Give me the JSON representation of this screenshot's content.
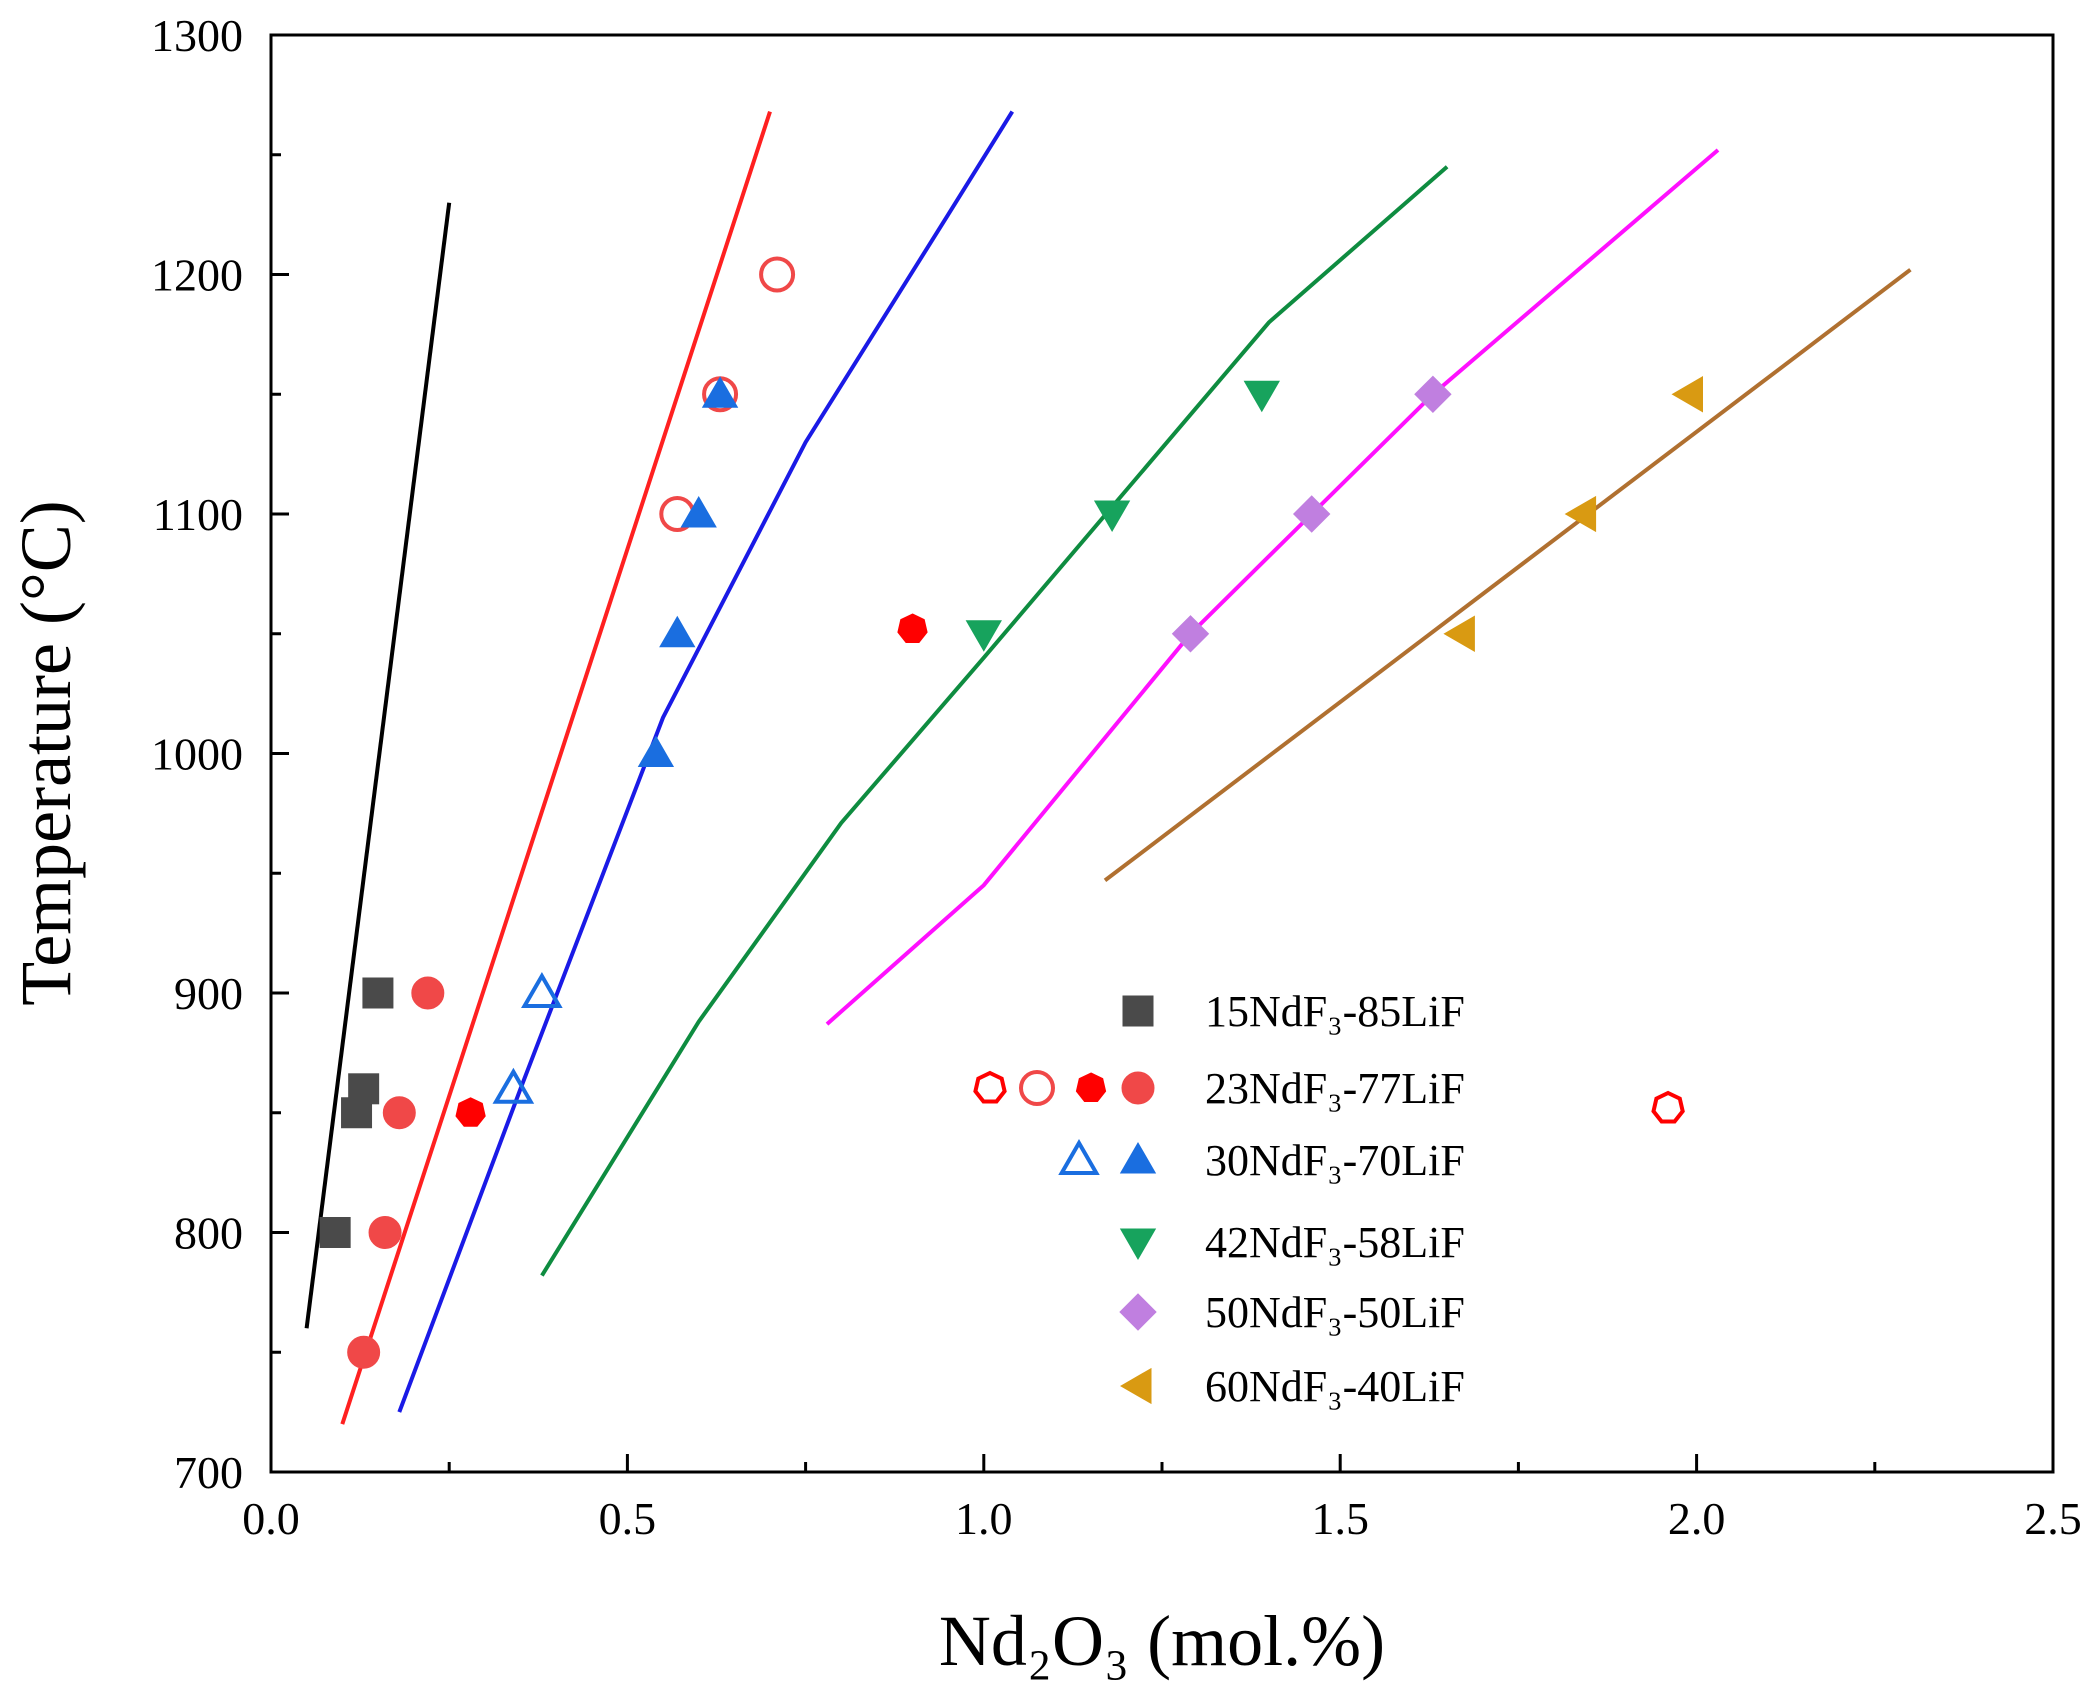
{
  "chart_data": {
    "type": "scatter",
    "title": "",
    "xlabel": "Nd₂O₃ (mol.%)",
    "ylabel": "Temperature (°C)",
    "xlim": [
      0.0,
      2.5
    ],
    "ylim": [
      700,
      1300
    ],
    "x_ticks": [
      "0.0",
      "0.5",
      "1.0",
      "1.5",
      "2.0",
      "2.5"
    ],
    "y_ticks": [
      "700",
      "800",
      "900",
      "1000",
      "1100",
      "1200",
      "1300"
    ],
    "grid": false,
    "legend_position": "bottom-right",
    "series": [
      {
        "name": "15NdF₃-85LiF",
        "color": "#4a4a4a",
        "marker": "square",
        "points": [
          {
            "x": 0.09,
            "y": 800,
            "style": "filled"
          },
          {
            "x": 0.12,
            "y": 850,
            "style": "filled"
          },
          {
            "x": 0.13,
            "y": 860,
            "style": "filled"
          },
          {
            "x": 0.15,
            "y": 900,
            "style": "filled"
          }
        ],
        "fit_line": {
          "color": "#000000",
          "x": [
            0.05,
            0.25
          ],
          "y": [
            760,
            1230
          ]
        }
      },
      {
        "name": "23NdF₃-77LiF",
        "color": "#f04848",
        "marker": "circle",
        "points": [
          {
            "x": 0.13,
            "y": 750,
            "style": "filled"
          },
          {
            "x": 0.16,
            "y": 800,
            "style": "filled"
          },
          {
            "x": 0.18,
            "y": 850,
            "style": "filled"
          },
          {
            "x": 0.22,
            "y": 900,
            "style": "filled"
          },
          {
            "x": 0.28,
            "y": 850,
            "style": "heptagon"
          },
          {
            "x": 0.9,
            "y": 1052,
            "style": "heptagon"
          },
          {
            "x": 1.96,
            "y": 852,
            "style": "open-heptagon"
          },
          {
            "x": 0.57,
            "y": 1100,
            "style": "open"
          },
          {
            "x": 0.63,
            "y": 1150,
            "style": "open"
          },
          {
            "x": 0.71,
            "y": 1200,
            "style": "open"
          }
        ],
        "fit_line": {
          "color": "#ff2020",
          "x": [
            0.1,
            0.7
          ],
          "y": [
            720,
            1268
          ]
        }
      },
      {
        "name": "30NdF₃-70LiF",
        "color": "#1a6ee0",
        "marker": "triangle-up",
        "points": [
          {
            "x": 0.34,
            "y": 860,
            "style": "open"
          },
          {
            "x": 0.38,
            "y": 900,
            "style": "open"
          },
          {
            "x": 0.54,
            "y": 1000,
            "style": "filled"
          },
          {
            "x": 0.57,
            "y": 1050,
            "style": "filled"
          },
          {
            "x": 0.6,
            "y": 1100,
            "style": "filled"
          },
          {
            "x": 0.63,
            "y": 1150,
            "style": "filled"
          }
        ],
        "fit_line": {
          "color": "#1a1ae6",
          "x": [
            0.18,
            0.35,
            0.55,
            0.75,
            0.95,
            1.04
          ],
          "y": [
            725,
            860,
            1015,
            1130,
            1225,
            1268
          ]
        }
      },
      {
        "name": "42NdF₃-58LiF",
        "color": "#17a35d",
        "marker": "triangle-down",
        "points": [
          {
            "x": 1.0,
            "y": 1050,
            "style": "filled"
          },
          {
            "x": 1.18,
            "y": 1100,
            "style": "filled"
          },
          {
            "x": 1.39,
            "y": 1150,
            "style": "filled"
          }
        ],
        "fit_line": {
          "color": "#0e8c40",
          "x": [
            0.38,
            0.6,
            0.8,
            1.0,
            1.2,
            1.4,
            1.65
          ],
          "y": [
            782,
            888,
            971,
            1040,
            1110,
            1180,
            1245
          ]
        }
      },
      {
        "name": "50NdF₃-50LiF",
        "color": "#c07fe0",
        "marker": "diamond",
        "points": [
          {
            "x": 1.29,
            "y": 1050,
            "style": "filled"
          },
          {
            "x": 1.46,
            "y": 1100,
            "style": "filled"
          },
          {
            "x": 1.63,
            "y": 1150,
            "style": "filled"
          }
        ],
        "fit_line": {
          "color": "#ff10ff",
          "x": [
            0.78,
            1.0,
            1.29,
            1.46,
            1.63,
            2.03
          ],
          "y": [
            887,
            945,
            1050,
            1100,
            1150,
            1252
          ]
        }
      },
      {
        "name": "60NdF₃-40LiF",
        "color": "#d99a12",
        "marker": "triangle-left",
        "points": [
          {
            "x": 1.67,
            "y": 1050,
            "style": "filled"
          },
          {
            "x": 1.84,
            "y": 1100,
            "style": "filled"
          },
          {
            "x": 1.99,
            "y": 1150,
            "style": "filled"
          }
        ],
        "fit_line": {
          "color": "#b07030",
          "x": [
            1.17,
            2.3
          ],
          "y": [
            947,
            1202
          ]
        }
      }
    ]
  }
}
